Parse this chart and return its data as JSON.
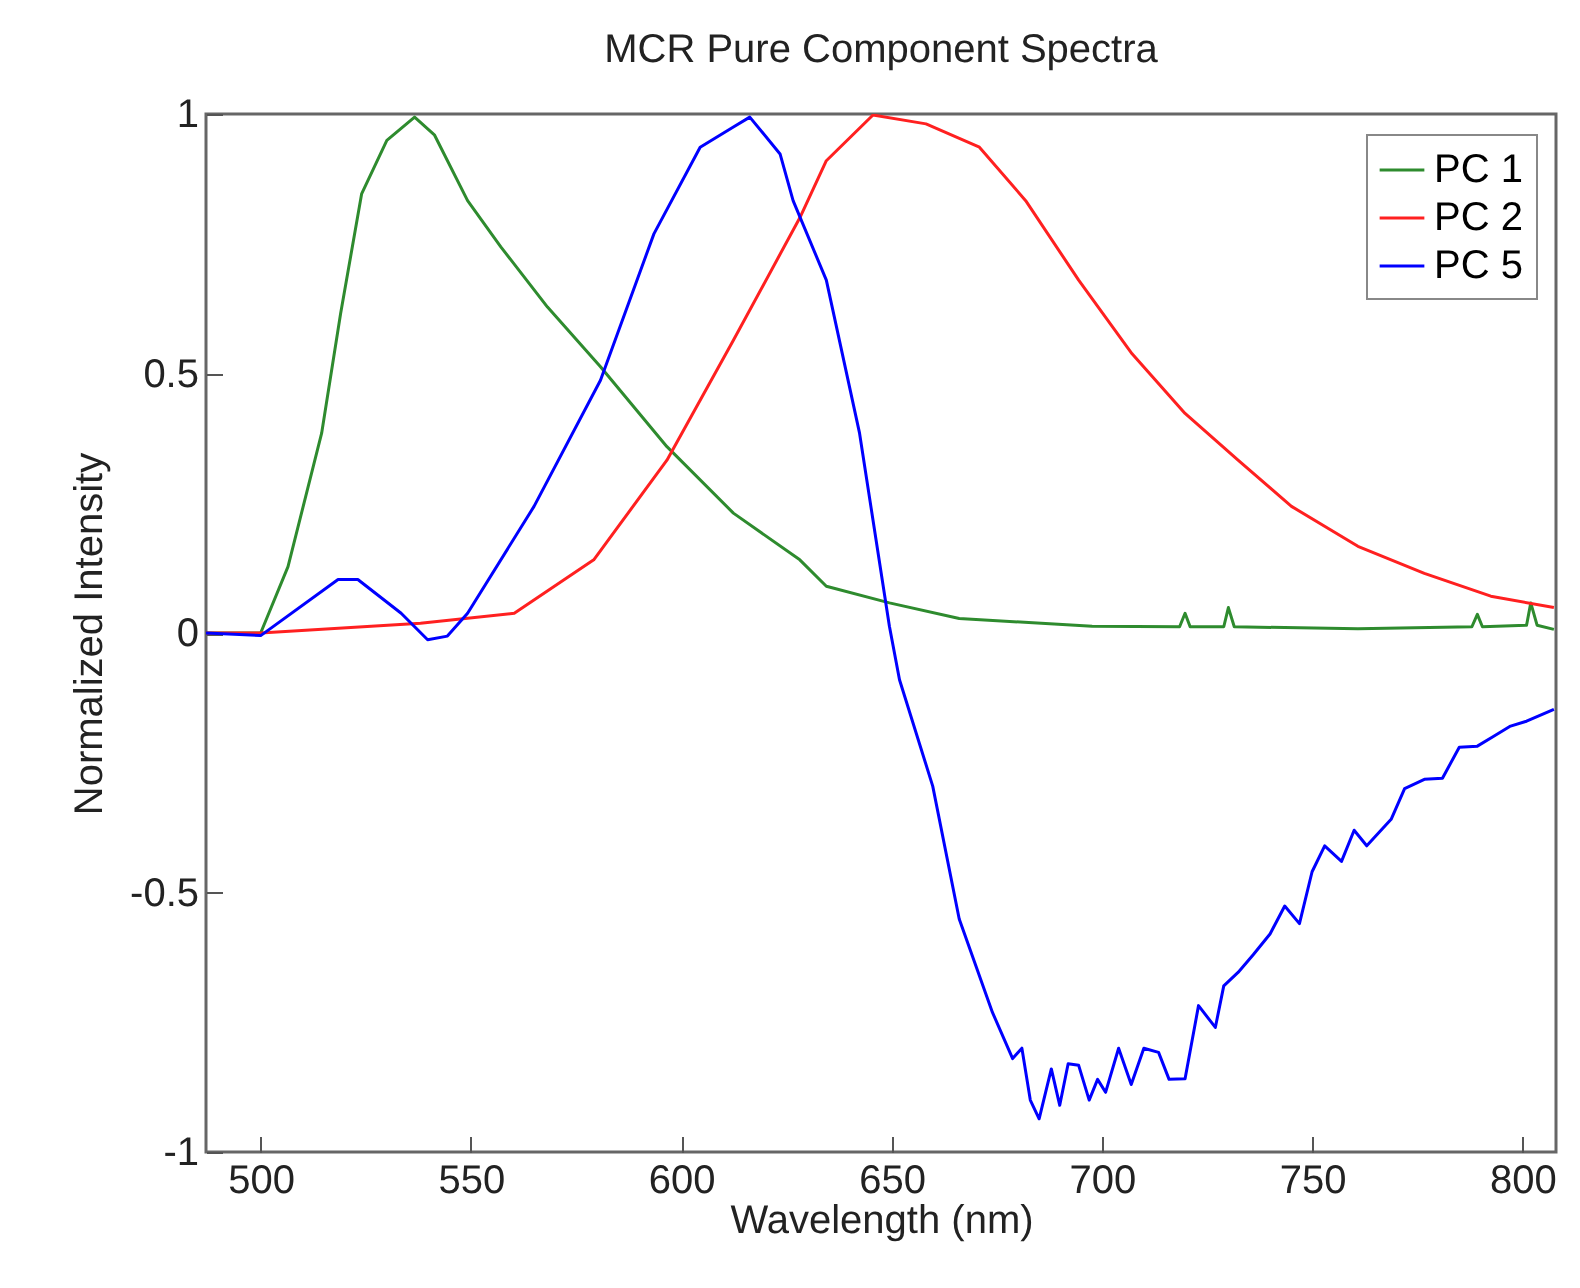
{
  "chart_data": {
    "type": "line",
    "title": "MCR Pure Component Spectra",
    "xlabel": "Wavelength (nm)",
    "ylabel": "Normalized Intensity",
    "xlim": [
      487,
      808
    ],
    "ylim": [
      -1,
      1
    ],
    "xticks": [
      500,
      550,
      600,
      650,
      700,
      750,
      800
    ],
    "yticks": [
      -1,
      -0.5,
      0,
      0.5,
      1
    ],
    "legend": "top right",
    "grid": false,
    "series": [
      {
        "name": "PC 1",
        "color": "#2e8b2e",
        "x": [
          487,
          500,
          506.5,
          514.5,
          519,
          524,
          530,
          536.6,
          541.3,
          549.2,
          557.1,
          568.2,
          580.8,
          596.6,
          612.4,
          628.2,
          634.5,
          649.5,
          666.1,
          697.7,
          718.5,
          719.8,
          721,
          729,
          730.1,
          731.5,
          760.9,
          788,
          789.3,
          790.5,
          801,
          802,
          803.5,
          807.5
        ],
        "values": [
          0,
          0,
          0.128,
          0.385,
          0.615,
          0.846,
          0.949,
          0.994,
          0.96,
          0.833,
          0.744,
          0.628,
          0.513,
          0.359,
          0.231,
          0.141,
          0.09,
          0.058,
          0.028,
          0.013,
          0.012,
          0.038,
          0.012,
          0.012,
          0.049,
          0.012,
          0.008,
          0.012,
          0.036,
          0.012,
          0.015,
          0.058,
          0.015,
          0.007
        ]
      },
      {
        "name": "PC 2",
        "color": "#ff2020",
        "x": [
          487,
          500,
          538,
          560.3,
          579.2,
          596.6,
          612.4,
          628.2,
          634.5,
          645.6,
          658.2,
          670.9,
          681.9,
          694.5,
          707.2,
          719.8,
          732.4,
          745.1,
          760.9,
          776.7,
          792.5,
          807.5
        ],
        "values": [
          0,
          0,
          0.019,
          0.038,
          0.141,
          0.333,
          0.564,
          0.8,
          0.91,
          0.998,
          0.981,
          0.936,
          0.833,
          0.68,
          0.538,
          0.423,
          0.333,
          0.244,
          0.167,
          0.115,
          0.071,
          0.049
        ]
      },
      {
        "name": "PC 5",
        "color": "#0000ff",
        "x": [
          487,
          500,
          518.4,
          523.1,
          533.4,
          539.7,
          544.4,
          549.2,
          565,
          580.8,
          593.5,
          604.5,
          612.4,
          616.3,
          623.5,
          626.6,
          634.5,
          642.4,
          649.5,
          651.9,
          659.8,
          666.1,
          674,
          678.8,
          681,
          683,
          685.1,
          688,
          690,
          692,
          694.5,
          697,
          699,
          700.9,
          704,
          707,
          710,
          713.5,
          716,
          719.8,
          723,
          727,
          729,
          732.4,
          736,
          740,
          743.5,
          747,
          750,
          753,
          757,
          760,
          763,
          768.8,
          772,
          776.7,
          781,
          785,
          789.3,
          793,
          797,
          801,
          807.5
        ],
        "values": [
          0,
          -0.005,
          0.103,
          0.103,
          0.038,
          -0.013,
          -0.006,
          0.038,
          0.244,
          0.487,
          0.769,
          0.936,
          0.975,
          0.994,
          0.923,
          0.833,
          0.68,
          0.385,
          0.013,
          -0.09,
          -0.295,
          -0.551,
          -0.731,
          -0.82,
          -0.8,
          -0.9,
          -0.936,
          -0.84,
          -0.91,
          -0.83,
          -0.833,
          -0.9,
          -0.86,
          -0.885,
          -0.8,
          -0.87,
          -0.8,
          -0.808,
          -0.86,
          -0.859,
          -0.718,
          -0.76,
          -0.68,
          -0.654,
          -0.62,
          -0.58,
          -0.526,
          -0.56,
          -0.46,
          -0.41,
          -0.44,
          -0.38,
          -0.41,
          -0.359,
          -0.3,
          -0.282,
          -0.28,
          -0.22,
          -0.218,
          -0.2,
          -0.18,
          -0.17,
          -0.147
        ]
      }
    ]
  }
}
